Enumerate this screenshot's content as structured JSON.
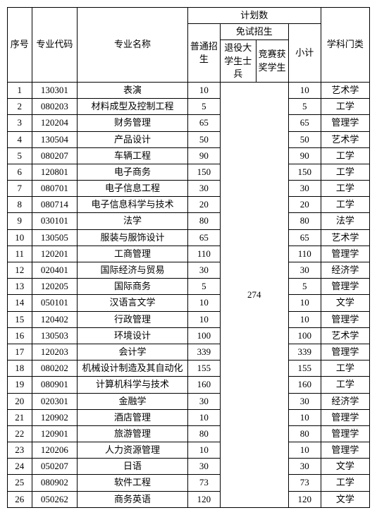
{
  "header": {
    "seq": "序号",
    "code": "专业代码",
    "name": "专业名称",
    "plan": "计划数",
    "normal": "普通招生",
    "exempt": "免试招生",
    "veteran": "退役大学生士兵",
    "competition": "竞赛获奖学生",
    "subtotal": "小计",
    "category": "学科门类"
  },
  "exempt_total": "274",
  "rows": [
    {
      "seq": "1",
      "code": "130301",
      "name": "表演",
      "normal": "10",
      "sub": "10",
      "cat": "艺术学"
    },
    {
      "seq": "2",
      "code": "080203",
      "name": "材料成型及控制工程",
      "normal": "5",
      "sub": "5",
      "cat": "工学"
    },
    {
      "seq": "3",
      "code": "120204",
      "name": "财务管理",
      "normal": "65",
      "sub": "65",
      "cat": "管理学"
    },
    {
      "seq": "4",
      "code": "130504",
      "name": "产品设计",
      "normal": "50",
      "sub": "50",
      "cat": "艺术学"
    },
    {
      "seq": "5",
      "code": "080207",
      "name": "车辆工程",
      "normal": "90",
      "sub": "90",
      "cat": "工学"
    },
    {
      "seq": "6",
      "code": "120801",
      "name": "电子商务",
      "normal": "150",
      "sub": "150",
      "cat": "工学"
    },
    {
      "seq": "7",
      "code": "080701",
      "name": "电子信息工程",
      "normal": "30",
      "sub": "30",
      "cat": "工学"
    },
    {
      "seq": "8",
      "code": "080714",
      "name": "电子信息科学与技术",
      "normal": "20",
      "sub": "20",
      "cat": "工学"
    },
    {
      "seq": "9",
      "code": "030101",
      "name": "法学",
      "normal": "80",
      "sub": "80",
      "cat": "法学"
    },
    {
      "seq": "10",
      "code": "130505",
      "name": "服装与服饰设计",
      "normal": "65",
      "sub": "65",
      "cat": "艺术学"
    },
    {
      "seq": "11",
      "code": "120201",
      "name": "工商管理",
      "normal": "110",
      "sub": "110",
      "cat": "管理学"
    },
    {
      "seq": "12",
      "code": "020401",
      "name": "国际经济与贸易",
      "normal": "30",
      "sub": "30",
      "cat": "经济学"
    },
    {
      "seq": "13",
      "code": "120205",
      "name": "国际商务",
      "normal": "5",
      "sub": "5",
      "cat": "管理学"
    },
    {
      "seq": "14",
      "code": "050101",
      "name": "汉语言文学",
      "normal": "10",
      "sub": "10",
      "cat": "文学"
    },
    {
      "seq": "15",
      "code": "120402",
      "name": "行政管理",
      "normal": "10",
      "sub": "10",
      "cat": "管理学"
    },
    {
      "seq": "16",
      "code": "130503",
      "name": "环境设计",
      "normal": "100",
      "sub": "100",
      "cat": "艺术学"
    },
    {
      "seq": "17",
      "code": "120203",
      "name": "会计学",
      "normal": "339",
      "sub": "339",
      "cat": "管理学"
    },
    {
      "seq": "18",
      "code": "080202",
      "name": "机械设计制造及其自动化",
      "normal": "155",
      "sub": "155",
      "cat": "工学"
    },
    {
      "seq": "19",
      "code": "080901",
      "name": "计算机科学与技术",
      "normal": "160",
      "sub": "160",
      "cat": "工学"
    },
    {
      "seq": "20",
      "code": "020301",
      "name": "金融学",
      "normal": "30",
      "sub": "30",
      "cat": "经济学"
    },
    {
      "seq": "21",
      "code": "120902",
      "name": "酒店管理",
      "normal": "10",
      "sub": "10",
      "cat": "管理学"
    },
    {
      "seq": "22",
      "code": "120901",
      "name": "旅游管理",
      "normal": "80",
      "sub": "80",
      "cat": "管理学"
    },
    {
      "seq": "23",
      "code": "120206",
      "name": "人力资源管理",
      "normal": "10",
      "sub": "10",
      "cat": "管理学"
    },
    {
      "seq": "24",
      "code": "050207",
      "name": "日语",
      "normal": "30",
      "sub": "30",
      "cat": "文学"
    },
    {
      "seq": "25",
      "code": "080902",
      "name": "软件工程",
      "normal": "73",
      "sub": "73",
      "cat": "工学"
    },
    {
      "seq": "26",
      "code": "050262",
      "name": "商务英语",
      "normal": "120",
      "sub": "120",
      "cat": "文学"
    }
  ]
}
